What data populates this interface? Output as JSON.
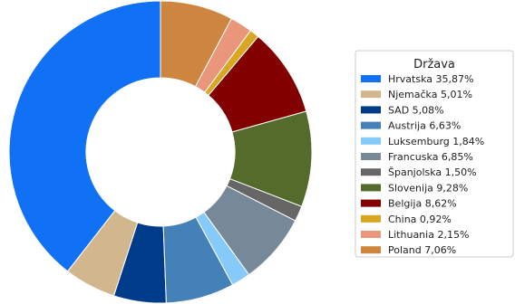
{
  "chart_data": {
    "type": "pie",
    "variant": "donut",
    "start": "top",
    "direction": "counterclockwise",
    "legend": {
      "title": "Država",
      "placement": "right"
    },
    "slices": [
      {
        "label": "Hrvatska 35,87%",
        "value": 35.87,
        "color": "#1071f4"
      },
      {
        "label": "Njemačka 5,01%",
        "value": 5.01,
        "color": "#d1b68e"
      },
      {
        "label": "SAD 5,08%",
        "value": 5.08,
        "color": "#003c8a"
      },
      {
        "label": "Austrija 6,63%",
        "value": 6.63,
        "color": "#4581b9"
      },
      {
        "label": "Luksemburg 1,84%",
        "value": 1.84,
        "color": "#86cafa"
      },
      {
        "label": "Francuska 6,85%",
        "value": 6.85,
        "color": "#778899"
      },
      {
        "label": "Španjolska 1,50%",
        "value": 1.5,
        "color": "#666666"
      },
      {
        "label": "Slovenija 9,28%",
        "value": 9.28,
        "color": "#546b2b"
      },
      {
        "label": "Belgija 8,62%",
        "value": 8.62,
        "color": "#820000"
      },
      {
        "label": "China 0,92%",
        "value": 0.92,
        "color": "#daa520"
      },
      {
        "label": "Lithuania 2,15%",
        "value": 2.15,
        "color": "#e9967a"
      },
      {
        "label": "Poland 7,06%",
        "value": 7.06,
        "color": "#cd853f"
      }
    ]
  }
}
